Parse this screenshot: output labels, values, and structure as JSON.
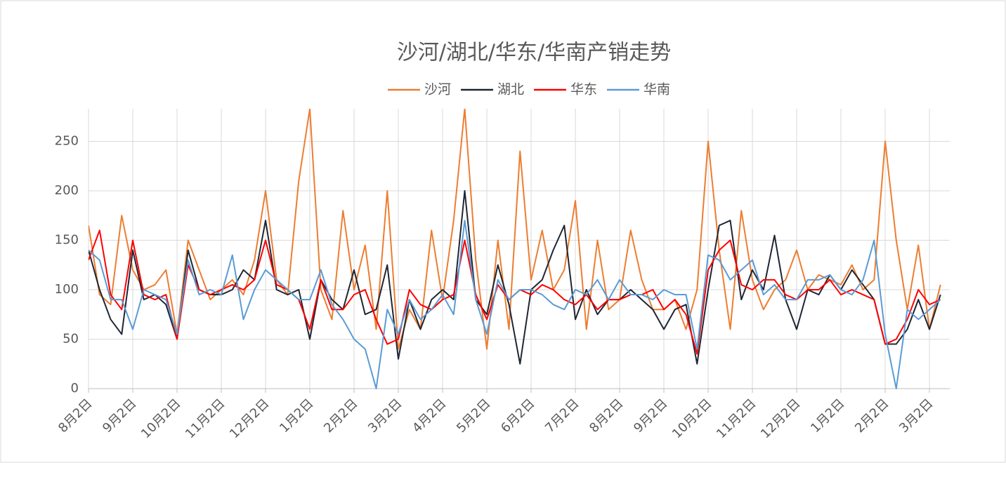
{
  "chart_data": {
    "type": "line",
    "title": "沙河/湖北/华东/华南产销走势",
    "categories": [
      "8月2日",
      null,
      null,
      null,
      "9月2日",
      null,
      null,
      null,
      "10月2日",
      null,
      null,
      null,
      "11月2日",
      null,
      null,
      null,
      "12月2日",
      null,
      null,
      null,
      "1月2日",
      null,
      null,
      null,
      "2月2日",
      null,
      null,
      null,
      "3月2日",
      null,
      null,
      null,
      "4月2日",
      null,
      null,
      null,
      "5月2日",
      null,
      null,
      null,
      "6月2日",
      null,
      null,
      null,
      "7月2日",
      null,
      null,
      null,
      "8月2日",
      null,
      null,
      null,
      "9月2日",
      null,
      null,
      null,
      "10月2日",
      null,
      null,
      null,
      "11月2日",
      null,
      null,
      null,
      "12月2日",
      null,
      null,
      null,
      "1月2日",
      null,
      null,
      null,
      "2月2日",
      null,
      null,
      null,
      "3月2日",
      null
    ],
    "series": [
      {
        "name": "沙河",
        "color": "#ed7d31",
        "values": [
          165,
          95,
          85,
          175,
          120,
          100,
          105,
          120,
          55,
          150,
          120,
          90,
          100,
          110,
          95,
          130,
          200,
          110,
          95,
          210,
          283,
          100,
          70,
          180,
          100,
          145,
          60,
          200,
          40,
          80,
          60,
          160,
          90,
          170,
          283,
          130,
          40,
          150,
          60,
          240,
          110,
          160,
          100,
          120,
          190,
          60,
          150,
          80,
          90,
          160,
          110,
          80,
          80,
          90,
          60,
          100,
          250,
          140,
          60,
          180,
          110,
          80,
          100,
          110,
          140,
          100,
          115,
          110,
          105,
          125,
          100,
          110,
          250,
          150,
          80,
          145,
          60,
          105
        ]
      },
      {
        "name": "湖北",
        "color": "#1f2633",
        "values": [
          140,
          100,
          70,
          55,
          140,
          90,
          95,
          85,
          50,
          140,
          100,
          95,
          95,
          100,
          120,
          110,
          170,
          100,
          95,
          100,
          50,
          110,
          90,
          80,
          120,
          75,
          80,
          125,
          30,
          90,
          60,
          90,
          100,
          90,
          200,
          90,
          75,
          125,
          85,
          25,
          100,
          110,
          140,
          165,
          70,
          100,
          75,
          90,
          90,
          100,
          90,
          80,
          60,
          80,
          85,
          25,
          100,
          165,
          170,
          90,
          120,
          100,
          155,
          90,
          60,
          100,
          95,
          115,
          100,
          120,
          105,
          90,
          45,
          45,
          60,
          90,
          60,
          95
        ]
      },
      {
        "name": "华东",
        "color": "#ff0000",
        "values": [
          130,
          160,
          95,
          80,
          150,
          95,
          90,
          95,
          50,
          125,
          100,
          95,
          100,
          105,
          100,
          110,
          150,
          105,
          100,
          90,
          60,
          110,
          80,
          80,
          95,
          100,
          70,
          45,
          50,
          100,
          85,
          80,
          90,
          95,
          150,
          95,
          70,
          105,
          90,
          100,
          95,
          105,
          100,
          90,
          85,
          95,
          80,
          90,
          90,
          95,
          95,
          100,
          80,
          90,
          75,
          35,
          120,
          140,
          150,
          105,
          100,
          110,
          110,
          95,
          90,
          100,
          100,
          110,
          95,
          100,
          95,
          90,
          45,
          50,
          70,
          100,
          85,
          90
        ]
      },
      {
        "name": "华南",
        "color": "#5b9bd5",
        "values": [
          140,
          130,
          90,
          90,
          60,
          100,
          95,
          90,
          55,
          130,
          95,
          100,
          95,
          135,
          70,
          100,
          120,
          110,
          100,
          90,
          90,
          120,
          85,
          70,
          50,
          40,
          0,
          80,
          55,
          90,
          70,
          80,
          95,
          75,
          170,
          90,
          55,
          110,
          90,
          100,
          100,
          95,
          85,
          80,
          100,
          95,
          110,
          90,
          110,
          95,
          95,
          90,
          100,
          95,
          95,
          40,
          135,
          130,
          110,
          120,
          130,
          95,
          105,
          90,
          90,
          110,
          110,
          115,
          100,
          95,
          110,
          150,
          55,
          0,
          80,
          70,
          80,
          90
        ]
      }
    ],
    "ylim": [
      0,
      283
    ],
    "yticks": [
      0,
      50,
      100,
      150,
      200,
      250
    ],
    "grid": true
  }
}
